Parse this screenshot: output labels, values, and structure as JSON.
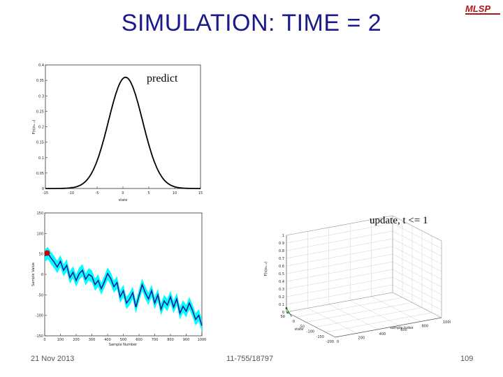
{
  "slide": {
    "title": "SIMULATION: TIME = 2",
    "logo_text": "MLSP",
    "footer": {
      "date": "21 Nov 2013",
      "course": "11-755/18797",
      "page": "109"
    }
  },
  "annotations": {
    "predict": "predict",
    "update": "update, t <= 1"
  },
  "colors": {
    "title": "#1a1a8c",
    "logo": "#b01818",
    "band": "#00ffff",
    "series": "#1a1a9a",
    "marker": "#cc0000"
  },
  "chart_data": [
    {
      "type": "line",
      "title": "",
      "xlabel": "state",
      "ylabel": "P(s|o₀..ₜ)",
      "xlim": [
        -15,
        15
      ],
      "ylim": [
        0,
        0.4
      ],
      "xticks": [
        "-15",
        "-10",
        "-5",
        "0",
        "5",
        "10",
        "15"
      ],
      "yticks": [
        "0",
        "0.05",
        "0.1",
        "0.15",
        "0.2",
        "0.25",
        "0.3",
        "0.35",
        "0.4"
      ],
      "curve": {
        "kind": "gaussian",
        "mean": 0.5,
        "std": 3.3,
        "peak": 0.36
      }
    },
    {
      "type": "line",
      "title": "",
      "xlabel": "Sample Number",
      "ylabel": "Sample Value",
      "xlim": [
        0,
        1000
      ],
      "ylim": [
        -150,
        150
      ],
      "xticks": [
        "0",
        "100",
        "200",
        "300",
        "400",
        "500",
        "600",
        "700",
        "800",
        "900",
        "1000"
      ],
      "yticks": [
        "-150",
        "-100",
        "-50",
        "0",
        "50",
        "100",
        "150"
      ],
      "series_x": [
        0,
        20,
        40,
        60,
        80,
        100,
        120,
        140,
        160,
        180,
        200,
        220,
        240,
        260,
        280,
        300,
        320,
        340,
        360,
        380,
        400,
        420,
        440,
        460,
        480,
        500,
        520,
        540,
        560,
        580,
        600,
        620,
        640,
        660,
        680,
        700,
        720,
        740,
        760,
        780,
        800,
        820,
        840,
        860,
        880,
        900,
        920,
        940,
        960,
        980,
        1000
      ],
      "series_y": [
        45,
        52,
        40,
        30,
        18,
        32,
        10,
        22,
        -8,
        5,
        -15,
        2,
        10,
        -12,
        0,
        -5,
        -25,
        -15,
        -35,
        -18,
        2,
        -10,
        -30,
        -20,
        -55,
        -40,
        -70,
        -60,
        -45,
        -80,
        -52,
        -25,
        -45,
        -60,
        -40,
        -70,
        -50,
        -85,
        -65,
        -75,
        -55,
        -80,
        -60,
        -95,
        -78,
        -90,
        -70,
        -88,
        -110,
        -100,
        -125
      ],
      "band_halfwidth": 15,
      "marker": {
        "x": 15,
        "y": 52
      }
    },
    {
      "type": "scatter",
      "title": "",
      "xlabel": "state",
      "ylabel": "P(s|o₀..ₜ)",
      "zlabel": "sample index",
      "zticks": [
        "0",
        "0.1",
        "0.2",
        "0.3",
        "0.4",
        "0.5",
        "0.6",
        "0.7",
        "0.8",
        "0.9",
        "1"
      ],
      "state_ticks": [
        "-200",
        "-150",
        "-100",
        "-50",
        "0",
        "50"
      ],
      "sample_ticks": [
        "0",
        "200",
        "400",
        "600",
        "800",
        "1000"
      ],
      "points": [
        {
          "state": 50,
          "sample": 0,
          "p": 0.05
        },
        {
          "state": 45,
          "sample": 1,
          "p": 0.0
        }
      ]
    }
  ]
}
